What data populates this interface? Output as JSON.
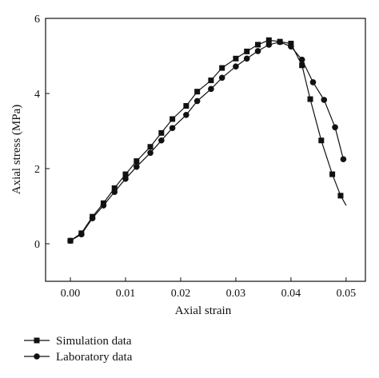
{
  "chart_data": {
    "type": "line",
    "xlabel": "Axial strain",
    "ylabel": "Axial stress (MPa)",
    "xlim": [
      -0.0045,
      0.0535
    ],
    "ylim": [
      -1.0,
      6.0
    ],
    "xticks": [
      0.0,
      0.01,
      0.02,
      0.03,
      0.04,
      0.05
    ],
    "xtick_labels": [
      "0.00",
      "0.01",
      "0.02",
      "0.03",
      "0.04",
      "0.05"
    ],
    "yticks": [
      0,
      2,
      4,
      6
    ],
    "ytick_labels": [
      "0",
      "2",
      "4",
      "6"
    ],
    "grid": false,
    "legend_position": "bottom-left",
    "series": [
      {
        "name": "Simulation data",
        "marker": "square",
        "color": "#111111",
        "x": [
          0.0,
          0.002,
          0.004,
          0.006,
          0.008,
          0.01,
          0.012,
          0.0145,
          0.0165,
          0.0185,
          0.021,
          0.023,
          0.0255,
          0.0275,
          0.03,
          0.032,
          0.034,
          0.036,
          0.038,
          0.04,
          0.042,
          0.0435,
          0.0455,
          0.0475,
          0.049,
          0.05
        ],
        "y": [
          0.08,
          0.28,
          0.72,
          1.08,
          1.48,
          1.85,
          2.2,
          2.58,
          2.95,
          3.32,
          3.67,
          4.05,
          4.35,
          4.68,
          4.93,
          5.12,
          5.3,
          5.42,
          5.38,
          5.33,
          4.75,
          3.85,
          2.75,
          1.85,
          1.28,
          1.02
        ]
      },
      {
        "name": "Laboratory data",
        "marker": "circle",
        "color": "#111111",
        "x": [
          0.0,
          0.002,
          0.004,
          0.006,
          0.008,
          0.01,
          0.012,
          0.0145,
          0.0165,
          0.0185,
          0.021,
          0.023,
          0.0255,
          0.0275,
          0.03,
          0.032,
          0.034,
          0.036,
          0.038,
          0.04,
          0.042,
          0.044,
          0.046,
          0.048,
          0.0495
        ],
        "y": [
          0.08,
          0.25,
          0.68,
          1.02,
          1.38,
          1.73,
          2.05,
          2.42,
          2.75,
          3.08,
          3.43,
          3.8,
          4.12,
          4.42,
          4.72,
          4.93,
          5.13,
          5.3,
          5.37,
          5.25,
          4.9,
          4.3,
          3.83,
          3.1,
          2.25
        ]
      }
    ]
  }
}
